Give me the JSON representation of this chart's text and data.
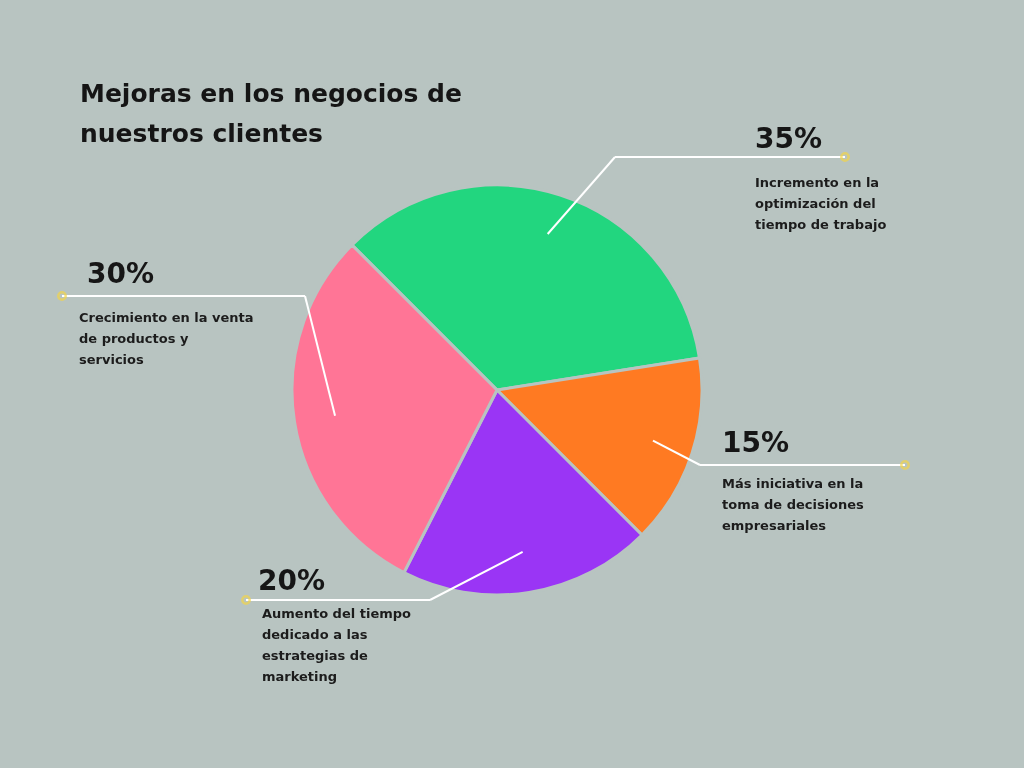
{
  "chart_data": {
    "type": "pie",
    "title": "Mejoras en los negocios de nuestros clientes",
    "categories": [
      "Incremento en la optimización del tiempo de trabajo",
      "Más iniciativa en la toma de decisiones empresariales",
      "Aumento del tiempo dedicado a las estrategias de marketing",
      "Crecimiento en la venta de productos y servicios"
    ],
    "values": [
      35,
      15,
      20,
      30
    ],
    "colors": [
      "#22d67f",
      "#ff7a22",
      "#9a35f5",
      "#ff7596"
    ],
    "value_labels": [
      "35%",
      "15%",
      "20%",
      "30%"
    ]
  }
}
